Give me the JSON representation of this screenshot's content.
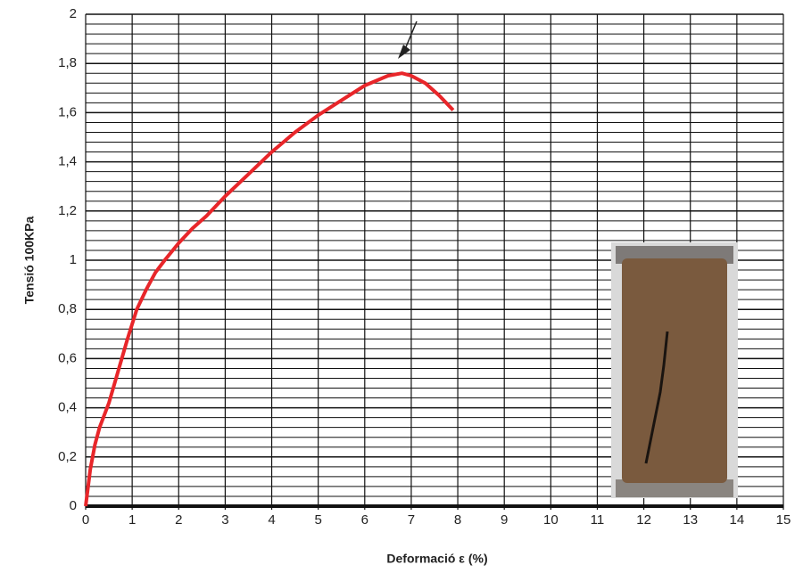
{
  "chart_data": {
    "type": "line",
    "x_label": "Deformació ε (%)",
    "y_label": "Tensió 100KPa",
    "x": [
      0,
      0.1,
      0.2,
      0.3,
      0.5,
      0.7,
      0.9,
      1.1,
      1.3,
      1.5,
      1.7,
      2.0,
      2.3,
      2.6,
      3.0,
      3.5,
      4.0,
      4.5,
      5.0,
      5.5,
      6.0,
      6.5,
      6.8,
      7.0,
      7.3,
      7.6,
      7.9
    ],
    "series": [
      {
        "color": "#e8262a",
        "values": [
          0,
          0.15,
          0.25,
          0.32,
          0.42,
          0.55,
          0.68,
          0.8,
          0.88,
          0.95,
          1.0,
          1.07,
          1.13,
          1.18,
          1.26,
          1.35,
          1.44,
          1.52,
          1.59,
          1.65,
          1.71,
          1.75,
          1.76,
          1.75,
          1.72,
          1.67,
          1.61
        ]
      }
    ],
    "xlim": [
      0,
      15
    ],
    "xticks": [
      0,
      1,
      2,
      3,
      4,
      5,
      6,
      7,
      8,
      9,
      10,
      11,
      12,
      13,
      14,
      15
    ],
    "ylim": [
      0,
      2
    ],
    "yticks": [
      0,
      {
        "value": 0.2,
        "label": "0,2"
      },
      {
        "value": 0.4,
        "label": "0,4"
      },
      {
        "value": 0.6,
        "label": "0,6"
      },
      {
        "value": 0.8,
        "label": "0,8"
      },
      1,
      {
        "value": 1.2,
        "label": "1,2"
      },
      {
        "value": 1.4,
        "label": "1,4"
      },
      {
        "value": 1.6,
        "label": "1,6"
      },
      {
        "value": 1.8,
        "label": "1,8"
      },
      2
    ],
    "grid": true
  }
}
